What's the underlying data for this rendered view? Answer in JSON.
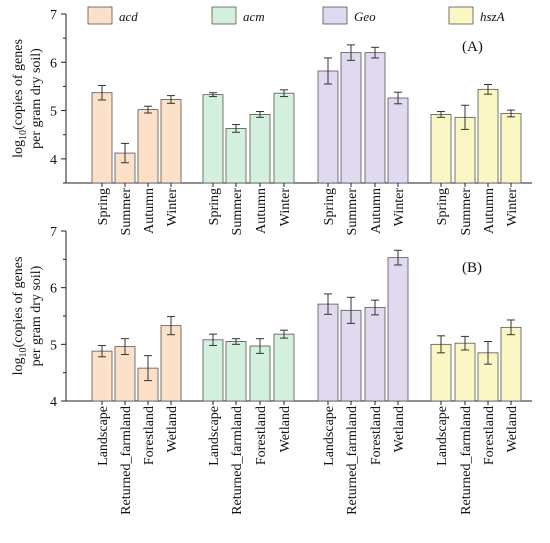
{
  "legend": [
    {
      "name": "acd",
      "color": "#fce0c8"
    },
    {
      "name": "acm",
      "color": "#d3efdd"
    },
    {
      "name": "Geo",
      "color": "#e1d9ef"
    },
    {
      "name": "hszA",
      "color": "#fbf7c4"
    }
  ],
  "chart_data": [
    {
      "type": "bar",
      "panel_label": "(A)",
      "ylabel_line1": "log10(copies of genes",
      "ylabel_line2": "per gram dry soil)",
      "ylim": [
        3.5,
        7
      ],
      "yticks": [
        4,
        5,
        6,
        7
      ],
      "categories": [
        "Spring",
        "Summer",
        "Autumn",
        "Winter"
      ],
      "series": [
        {
          "name": "acd",
          "values": [
            5.37,
            4.12,
            5.02,
            5.23
          ],
          "errors": [
            0.15,
            0.2,
            0.07,
            0.08
          ]
        },
        {
          "name": "acm",
          "values": [
            5.33,
            4.63,
            4.92,
            5.36
          ],
          "errors": [
            0.04,
            0.08,
            0.06,
            0.07
          ]
        },
        {
          "name": "Geo",
          "values": [
            5.82,
            6.2,
            6.2,
            5.26
          ],
          "errors": [
            0.27,
            0.16,
            0.11,
            0.12
          ]
        },
        {
          "name": "hszA",
          "values": [
            4.92,
            4.86,
            5.44,
            4.94
          ],
          "errors": [
            0.06,
            0.25,
            0.1,
            0.07
          ]
        }
      ]
    },
    {
      "type": "bar",
      "panel_label": "(B)",
      "ylabel_line1": "log10(copies of genes",
      "ylabel_line2": "per gram dry soil)",
      "ylim": [
        4,
        7
      ],
      "yticks": [
        4,
        5,
        6,
        7
      ],
      "categories": [
        "Landscape",
        "Returned_farmland",
        "Forestland",
        "Wetland"
      ],
      "series": [
        {
          "name": "acd",
          "values": [
            4.88,
            4.96,
            4.58,
            5.33
          ],
          "errors": [
            0.1,
            0.14,
            0.22,
            0.16
          ]
        },
        {
          "name": "acm",
          "values": [
            5.08,
            5.05,
            4.97,
            5.18
          ],
          "errors": [
            0.1,
            0.05,
            0.13,
            0.07
          ]
        },
        {
          "name": "Geo",
          "values": [
            5.71,
            5.6,
            5.65,
            6.53
          ],
          "errors": [
            0.18,
            0.23,
            0.13,
            0.13
          ]
        },
        {
          "name": "hszA",
          "values": [
            5.0,
            5.02,
            4.85,
            5.3
          ],
          "errors": [
            0.15,
            0.12,
            0.2,
            0.13
          ]
        }
      ]
    }
  ]
}
